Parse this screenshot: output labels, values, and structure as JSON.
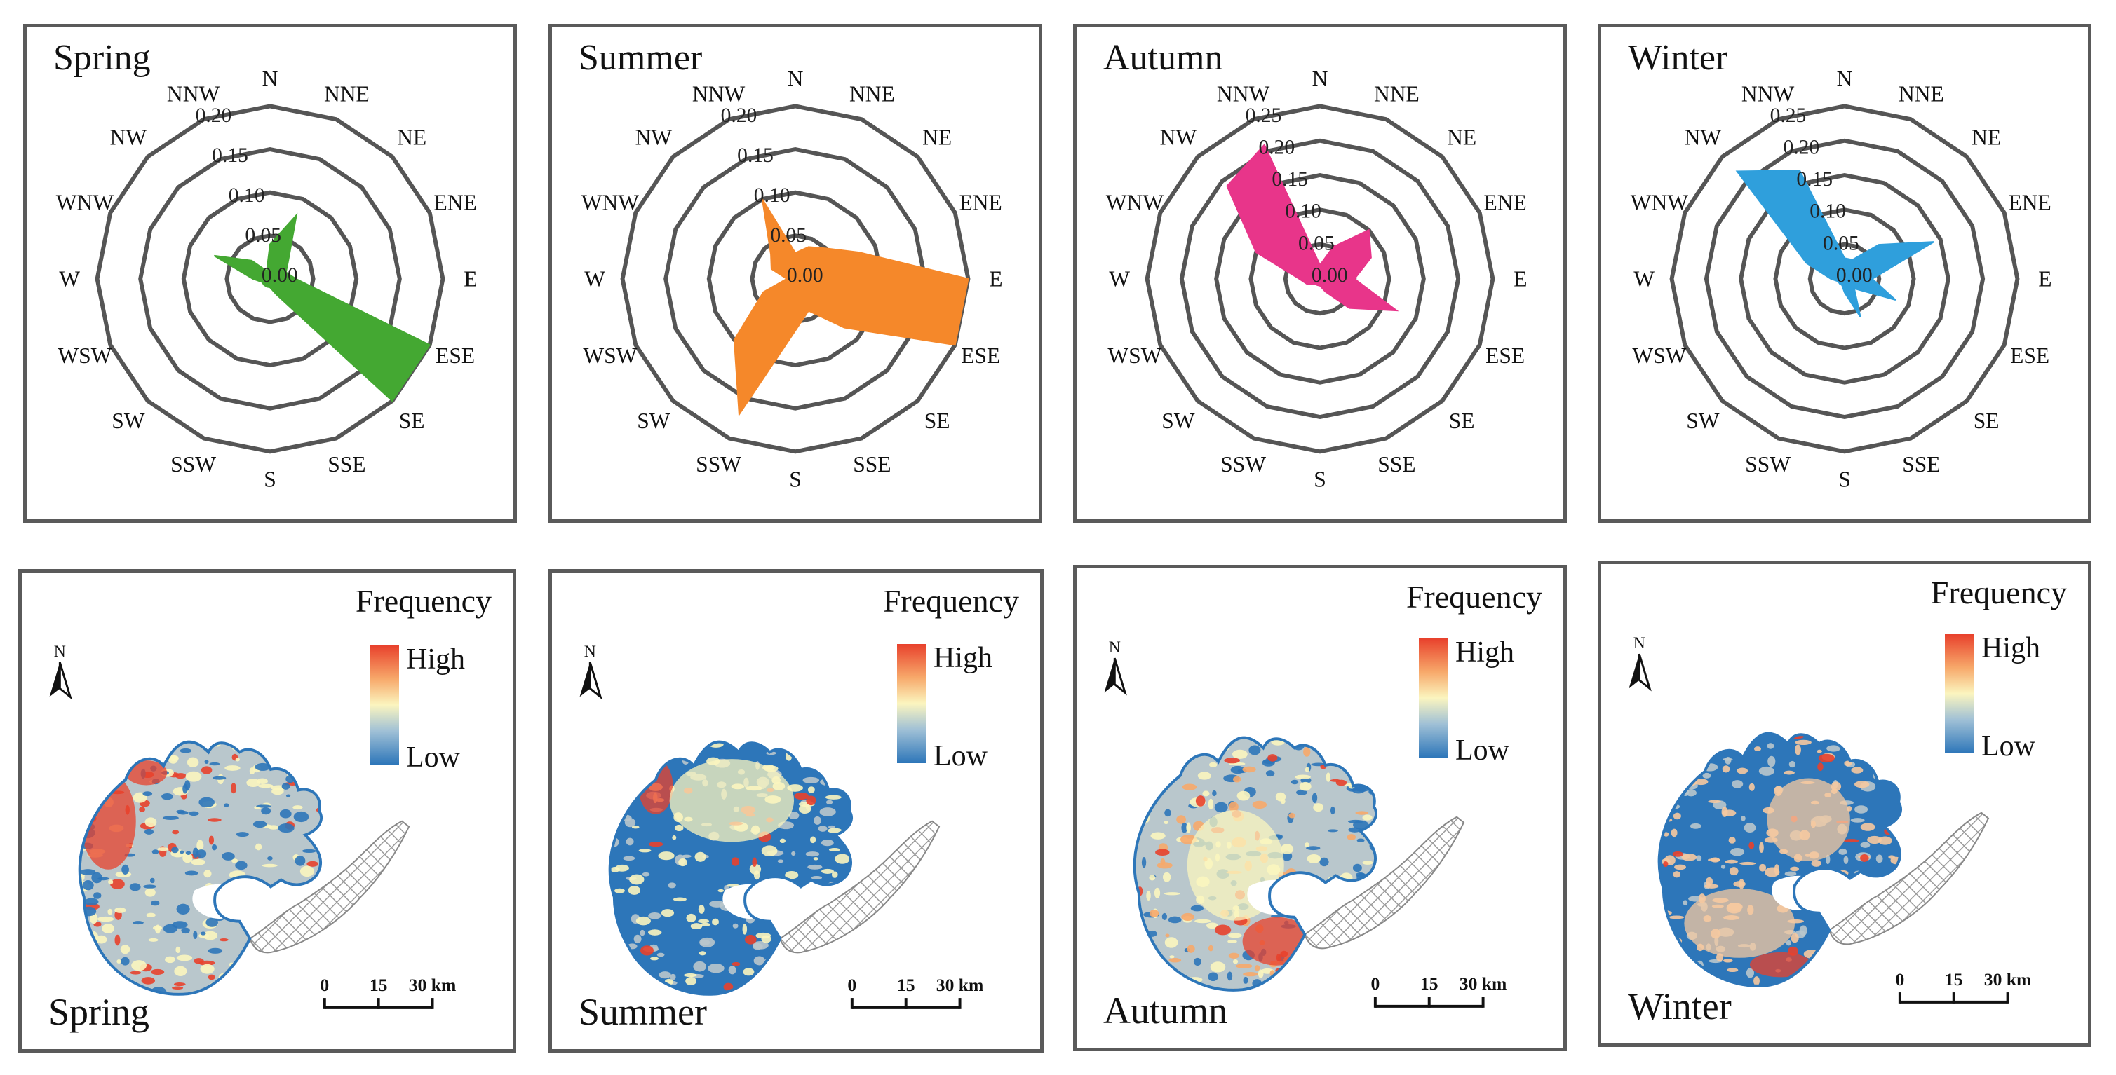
{
  "directions": [
    "N",
    "NNE",
    "NE",
    "ENE",
    "E",
    "ESE",
    "SE",
    "SSE",
    "S",
    "SSW",
    "SW",
    "WSW",
    "W",
    "WNW",
    "NW",
    "NNW"
  ],
  "chart_data": [
    {
      "type": "radar",
      "title": "Spring",
      "color": "#44a832",
      "rticks": [
        "0.00",
        "0.05",
        "0.10",
        "0.15",
        "0.20"
      ],
      "rmax": 0.2,
      "values": [
        0.04,
        0.08,
        0.03,
        0.02,
        0.03,
        0.2,
        0.21,
        0.02,
        0.01,
        0.01,
        0.01,
        0.01,
        0.02,
        0.07,
        0.03,
        0.01
      ]
    },
    {
      "type": "radar",
      "title": "Summer",
      "color": "#f5882a",
      "rticks": [
        "0.00",
        "0.05",
        "0.10",
        "0.15",
        "0.20"
      ],
      "rmax": 0.2,
      "values": [
        0.03,
        0.04,
        0.05,
        0.08,
        0.2,
        0.21,
        0.08,
        0.04,
        0.06,
        0.17,
        0.1,
        0.04,
        0.01,
        0.03,
        0.04,
        0.1
      ]
    },
    {
      "type": "radar",
      "title": "Autumn",
      "color": "#e8358a",
      "rticks": [
        "0.00",
        "0.05",
        "0.10",
        "0.15",
        "0.20",
        "0.25"
      ],
      "rmax": 0.25,
      "values": [
        0.02,
        0.05,
        0.1,
        0.08,
        0.05,
        0.12,
        0.06,
        0.02,
        0.01,
        0.01,
        0.01,
        0.02,
        0.03,
        0.1,
        0.19,
        0.21
      ]
    },
    {
      "type": "radar",
      "title": "Winter",
      "color": "#2f9fdc",
      "rticks": [
        "0.00",
        "0.05",
        "0.10",
        "0.15",
        "0.20",
        "0.25"
      ],
      "rmax": 0.25,
      "values": [
        0.03,
        0.03,
        0.07,
        0.14,
        0.04,
        0.08,
        0.02,
        0.06,
        0.02,
        0.01,
        0.01,
        0.01,
        0.02,
        0.06,
        0.22,
        0.17
      ]
    }
  ],
  "maps": [
    {
      "title": "Spring",
      "tone": "spring"
    },
    {
      "title": "Summer",
      "tone": "summer"
    },
    {
      "title": "Autumn",
      "tone": "autumn"
    },
    {
      "title": "Winter",
      "tone": "winter"
    }
  ],
  "legend": {
    "title": "Frequency",
    "high": "High",
    "low": "Low"
  },
  "scalebar": {
    "t0": "0",
    "t1": "15",
    "t2": "30 km"
  },
  "north_label": "N",
  "colors": {
    "high": "#e8412c",
    "mid": "#fbf5bf",
    "low": "#2d76b9",
    "grey": "#b8c5c8",
    "hatch": "#8a8a8a"
  }
}
